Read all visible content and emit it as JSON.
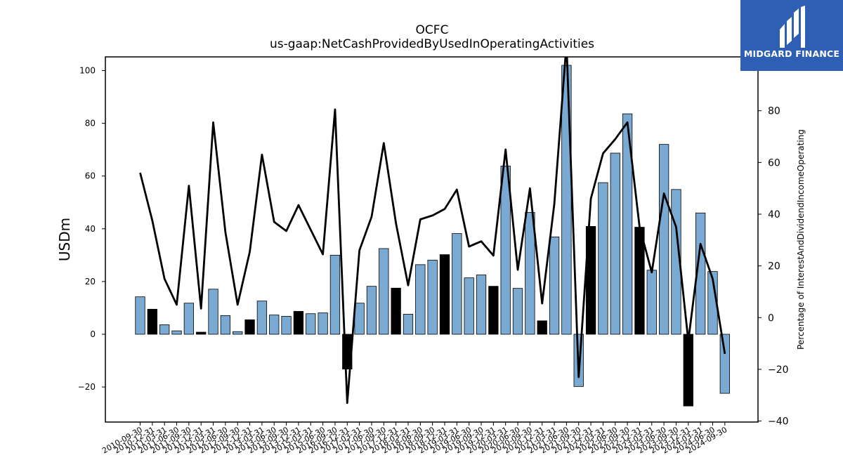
{
  "chart_data": {
    "type": "bar+line",
    "title": "OCFC",
    "subtitle": "us-gaap:NetCashProvidedByUsedInOperatingActivities",
    "ylabel": "USDm",
    "ylabel_right": "Percentage of InterestAndDividendIncomeOperating",
    "ylim": [
      -33,
      105
    ],
    "ylim_right": [
      -40,
      105
    ],
    "yticks": [
      -20,
      0,
      20,
      40,
      60,
      80,
      100
    ],
    "yticks_right": [
      -40,
      -20,
      0,
      20,
      40,
      60,
      80
    ],
    "categories": [
      "2010-09-30",
      "2010-12-31",
      "2011-03-31",
      "2011-06-30",
      "2011-09-30",
      "2011-12-31",
      "2012-03-31",
      "2012-06-30",
      "2012-09-30",
      "2012-12-31",
      "2013-03-31",
      "2013-06-30",
      "2013-09-30",
      "2013-12-31",
      "2015-03-31",
      "2015-06-30",
      "2016-09-30",
      "2016-12-31",
      "2017-03-31",
      "2017-06-30",
      "2017-09-30",
      "2017-12-31",
      "2018-03-31",
      "2018-06-30",
      "2018-09-30",
      "2018-12-31",
      "2019-03-31",
      "2019-06-30",
      "2019-09-30",
      "2019-12-31",
      "2020-03-31",
      "2020-06-30",
      "2020-09-30",
      "2020-12-31",
      "2021-03-31",
      "2021-06-30",
      "2021-09-30",
      "2021-12-31",
      "2022-03-31",
      "2022-06-30",
      "2022-09-30",
      "2022-12-31",
      "2023-03-31",
      "2023-06-30",
      "2023-09-30",
      "2023-12-31",
      "2024-03-31",
      "2024-06-30",
      "2024-09-30"
    ],
    "series": [
      {
        "kind": "bar",
        "values": [
          14.2,
          9.5,
          3.6,
          1.3,
          11.8,
          0.8,
          17.1,
          7.1,
          1.0,
          5.5,
          12.6,
          7.3,
          6.8,
          8.7,
          7.8,
          8.1,
          30.0,
          -13.2,
          11.8,
          18.2,
          32.5,
          17.5,
          7.6,
          26.4,
          28.1,
          30.2,
          38.2,
          21.4,
          22.5,
          18.2,
          63.8,
          17.4,
          46.2,
          5.1,
          36.9,
          102.0,
          -19.8,
          40.9,
          57.5,
          68.7,
          83.6,
          40.6,
          24.3,
          72.0,
          54.9,
          -27.2,
          46.0,
          23.8,
          -22.4
        ],
        "highlight": [
          false,
          true,
          false,
          false,
          false,
          true,
          false,
          false,
          false,
          true,
          false,
          false,
          false,
          true,
          false,
          false,
          false,
          true,
          false,
          false,
          false,
          true,
          false,
          false,
          false,
          true,
          false,
          false,
          false,
          true,
          false,
          false,
          false,
          true,
          false,
          false,
          false,
          true,
          false,
          false,
          false,
          true,
          false,
          false,
          false,
          true,
          false,
          false,
          false
        ],
        "color": "#7aaad1",
        "highlight_color": "#000000"
      },
      {
        "kind": "line",
        "axis": "right",
        "values": [
          56,
          37.5,
          15,
          5,
          51,
          3.5,
          75.5,
          33,
          5,
          25.5,
          63,
          37,
          33.5,
          43.5,
          34,
          24.5,
          80.5,
          -33,
          26,
          39,
          67.5,
          36.5,
          12.5,
          38,
          39.5,
          42,
          49.5,
          27.5,
          29.5,
          24,
          65,
          18.5,
          50,
          5.5,
          44,
          106,
          -23,
          46,
          63.5,
          69,
          75.5,
          35,
          17.5,
          48,
          35,
          -9,
          28.5,
          15,
          -14
        ],
        "color": "#000000"
      }
    ],
    "grid": false,
    "legend": "none"
  },
  "logo": {
    "brand": "MIDGARD FINANCE",
    "color": "#2f5fb3"
  }
}
